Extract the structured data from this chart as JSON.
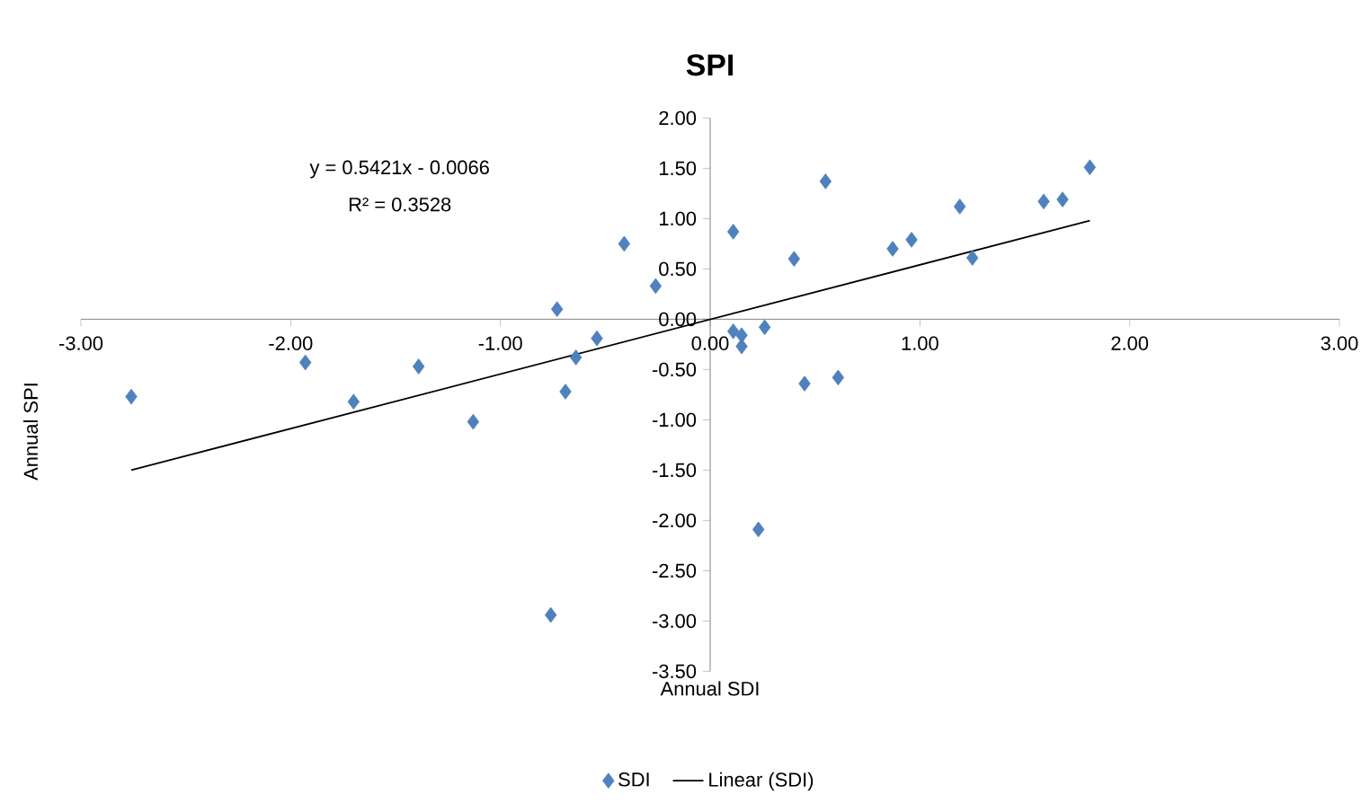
{
  "chart_data": {
    "type": "scatter",
    "title": "SPI",
    "xlabel": "Annual SDI",
    "ylabel": "Annual SPI",
    "annotations": [
      "y = 0.5421x - 0.0066",
      "R² = 0.3528"
    ],
    "xlim": [
      -3,
      3
    ],
    "ylim": [
      -3.5,
      2
    ],
    "xticks": [
      {
        "value": -3,
        "label": "-3.00"
      },
      {
        "value": -2,
        "label": "-2.00"
      },
      {
        "value": -1,
        "label": "-1.00"
      },
      {
        "value": 0,
        "label": "0.00"
      },
      {
        "value": 1,
        "label": "1.00"
      },
      {
        "value": 2,
        "label": "2.00"
      },
      {
        "value": 3,
        "label": "3.00"
      }
    ],
    "yticks": [
      {
        "value": -3.5,
        "label": "-3.50"
      },
      {
        "value": -3,
        "label": "-3.00"
      },
      {
        "value": -2.5,
        "label": "-2.50"
      },
      {
        "value": -2,
        "label": "-2.00"
      },
      {
        "value": -1.5,
        "label": "-1.50"
      },
      {
        "value": -1,
        "label": "-1.00"
      },
      {
        "value": -0.5,
        "label": "-0.50"
      },
      {
        "value": 0,
        "label": "0.00"
      },
      {
        "value": 0.5,
        "label": "0.50"
      },
      {
        "value": 1,
        "label": "1.00"
      },
      {
        "value": 1.5,
        "label": "1.50"
      },
      {
        "value": 2,
        "label": "2.00"
      }
    ],
    "grid": false,
    "legend": "bottom",
    "series": [
      {
        "name": "SDI",
        "marker": "diamond",
        "color": "#4f81bd",
        "x": [
          -2.76,
          -1.93,
          -1.7,
          -1.39,
          -1.13,
          -0.73,
          -0.69,
          -0.64,
          -0.54,
          -0.41,
          -0.26,
          -0.76,
          0.11,
          0.55,
          0.4,
          0.87,
          0.96,
          1.19,
          1.25,
          1.59,
          1.68,
          1.81,
          0.11,
          0.15,
          0.15,
          0.26,
          0.45,
          0.61,
          0.23
        ],
        "values": [
          -0.77,
          -0.43,
          -0.82,
          -0.47,
          -1.02,
          0.1,
          -0.72,
          -0.38,
          -0.19,
          0.75,
          0.33,
          -2.94,
          0.87,
          1.37,
          0.6,
          0.7,
          0.79,
          1.12,
          0.61,
          1.17,
          1.19,
          1.51,
          -0.12,
          -0.16,
          -0.27,
          -0.08,
          -0.64,
          -0.58,
          -2.09
        ]
      },
      {
        "name": "Linear (SDI)",
        "type": "line",
        "marker": "none",
        "line_style": "solid",
        "color": "#000000",
        "x": [
          -2.76,
          1.81
        ],
        "values": [
          -1.5,
          0.98
        ]
      }
    ]
  }
}
